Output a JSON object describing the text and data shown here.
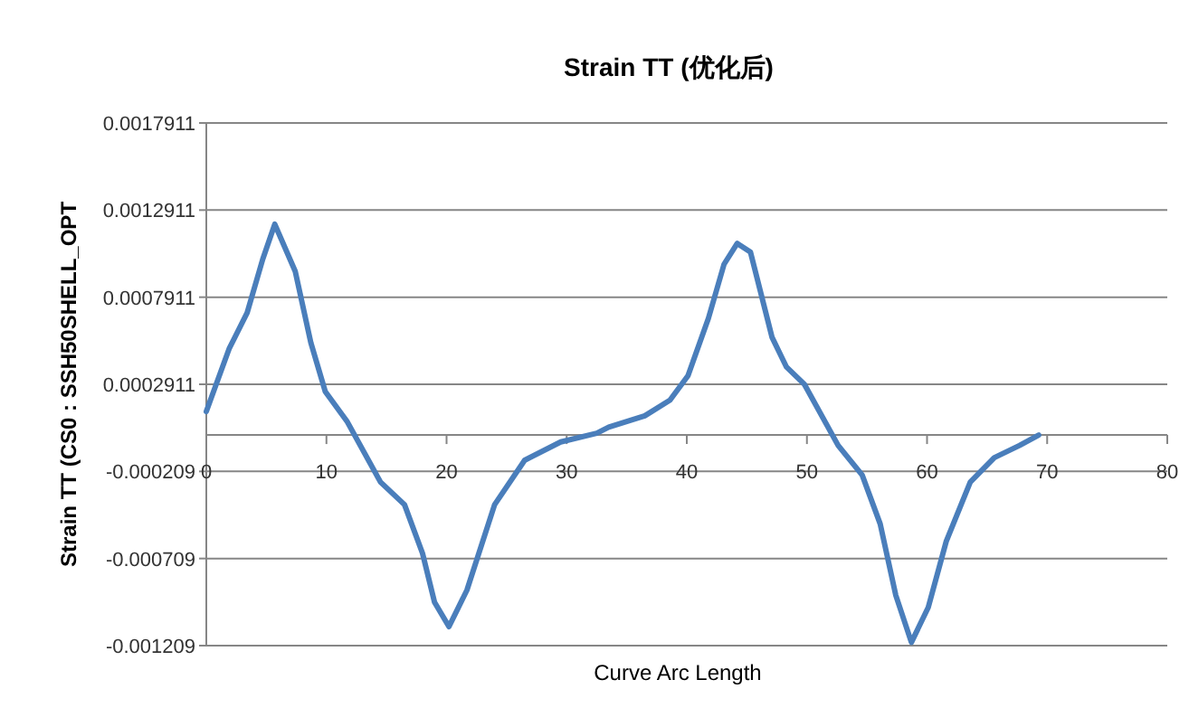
{
  "chart_data": {
    "type": "line",
    "title": "Strain TT (优化后)",
    "xlabel": "Curve Arc Length",
    "ylabel": "Strain TT (CS0 : SSH50SHELL_OPT",
    "x": [
      0,
      1.9,
      3.4,
      4.7,
      5.7,
      7.4,
      8.7,
      9.9,
      11.7,
      14.5,
      16.5,
      18.0,
      19.0,
      20.2,
      21.7,
      24.0,
      26.5,
      29.5,
      32.5,
      33.5,
      36.5,
      38.6,
      40.1,
      41.8,
      43.1,
      44.2,
      45.3,
      47.1,
      48.3,
      49.8,
      52.6,
      54.6,
      56.1,
      57.4,
      58.7,
      60.1,
      61.6,
      63.6,
      65.6,
      67.7,
      69.3
    ],
    "series": [
      {
        "color": "#4a7ebb",
        "values": [
          0.000135,
          0.000495,
          0.000702,
          0.00101,
          0.00121,
          0.00094,
          0.00053,
          0.00025,
          8e-05,
          -0.00027,
          -0.0004,
          -0.00068,
          -0.00096,
          -0.0011,
          -0.00089,
          -0.0004,
          -0.000145,
          -4e-05,
          1e-05,
          4.5e-05,
          0.00011,
          0.0002,
          0.00034,
          0.00067,
          0.00098,
          0.0011,
          0.00105,
          0.00056,
          0.00039,
          0.00029,
          -6e-05,
          -0.00023,
          -0.00051,
          -0.00092,
          -0.00119,
          -0.00099,
          -0.00061,
          -0.00027,
          -0.00013,
          -6e-05,
          0.0
        ]
      }
    ],
    "xlim": [
      0,
      80
    ],
    "xticks": [
      0,
      10,
      20,
      30,
      40,
      50,
      60,
      70,
      80
    ],
    "ylim": [
      -0.001209,
      0.0017911
    ],
    "yticks": [
      -0.001209,
      -0.000709,
      -0.000209,
      0.0002911,
      0.0007911,
      0.0012911,
      0.0017911
    ],
    "grid": "y"
  }
}
